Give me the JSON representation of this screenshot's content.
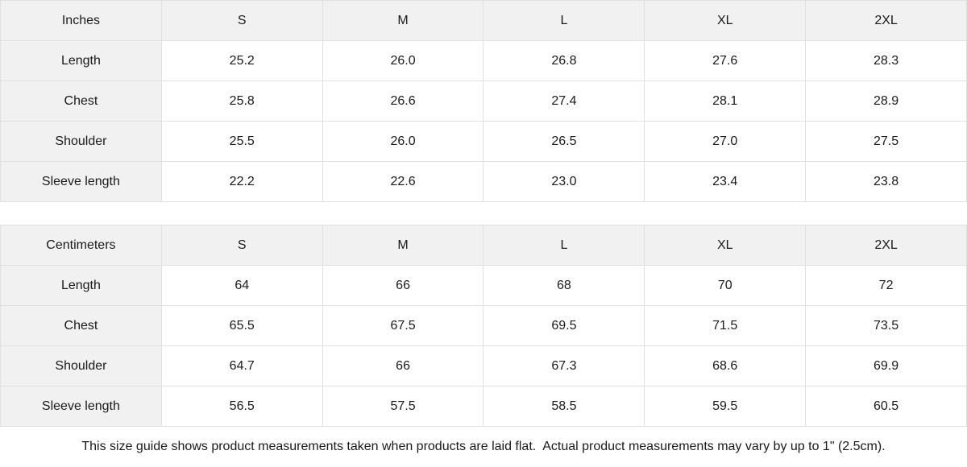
{
  "theme": {
    "background": "#ffffff",
    "header_cell_bg": "#f1f1f1",
    "body_cell_bg": "#ffffff",
    "border_color": "#e0e0e0",
    "text_color": "#1a1a1a"
  },
  "tables": [
    {
      "unit_label": "Inches",
      "columns": [
        "S",
        "M",
        "L",
        "XL",
        "2XL"
      ],
      "rows": [
        {
          "label": "Length",
          "values": [
            "25.2",
            "26.0",
            "26.8",
            "27.6",
            "28.3"
          ]
        },
        {
          "label": "Chest",
          "values": [
            "25.8",
            "26.6",
            "27.4",
            "28.1",
            "28.9"
          ]
        },
        {
          "label": "Shoulder",
          "values": [
            "25.5",
            "26.0",
            "26.5",
            "27.0",
            "27.5"
          ]
        },
        {
          "label": "Sleeve length",
          "values": [
            "22.2",
            "22.6",
            "23.0",
            "23.4",
            "23.8"
          ]
        }
      ]
    },
    {
      "unit_label": "Centimeters",
      "columns": [
        "S",
        "M",
        "L",
        "XL",
        "2XL"
      ],
      "rows": [
        {
          "label": "Length",
          "values": [
            "64",
            "66",
            "68",
            "70",
            "72"
          ]
        },
        {
          "label": "Chest",
          "values": [
            "65.5",
            "67.5",
            "69.5",
            "71.5",
            "73.5"
          ]
        },
        {
          "label": "Shoulder",
          "values": [
            "64.7",
            "66",
            "67.3",
            "68.6",
            "69.9"
          ]
        },
        {
          "label": "Sleeve length",
          "values": [
            "56.5",
            "57.5",
            "58.5",
            "59.5",
            "60.5"
          ]
        }
      ]
    }
  ],
  "footer": {
    "note": "This size guide shows product measurements taken when products are laid flat.  Actual product measurements may vary by up to 1\" (2.5cm)."
  },
  "chart_data": [
    {
      "type": "table",
      "title": "Inches",
      "columns": [
        "Inches",
        "S",
        "M",
        "L",
        "XL",
        "2XL"
      ],
      "rows": [
        [
          "Length",
          25.2,
          26.0,
          26.8,
          27.6,
          28.3
        ],
        [
          "Chest",
          25.8,
          26.6,
          27.4,
          28.1,
          28.9
        ],
        [
          "Shoulder",
          25.5,
          26.0,
          26.5,
          27.0,
          27.5
        ],
        [
          "Sleeve length",
          22.2,
          22.6,
          23.0,
          23.4,
          23.8
        ]
      ]
    },
    {
      "type": "table",
      "title": "Centimeters",
      "columns": [
        "Centimeters",
        "S",
        "M",
        "L",
        "XL",
        "2XL"
      ],
      "rows": [
        [
          "Length",
          64,
          66,
          68,
          70,
          72
        ],
        [
          "Chest",
          65.5,
          67.5,
          69.5,
          71.5,
          73.5
        ],
        [
          "Shoulder",
          64.7,
          66,
          67.3,
          68.6,
          69.9
        ],
        [
          "Sleeve length",
          56.5,
          57.5,
          58.5,
          59.5,
          60.5
        ]
      ]
    }
  ]
}
